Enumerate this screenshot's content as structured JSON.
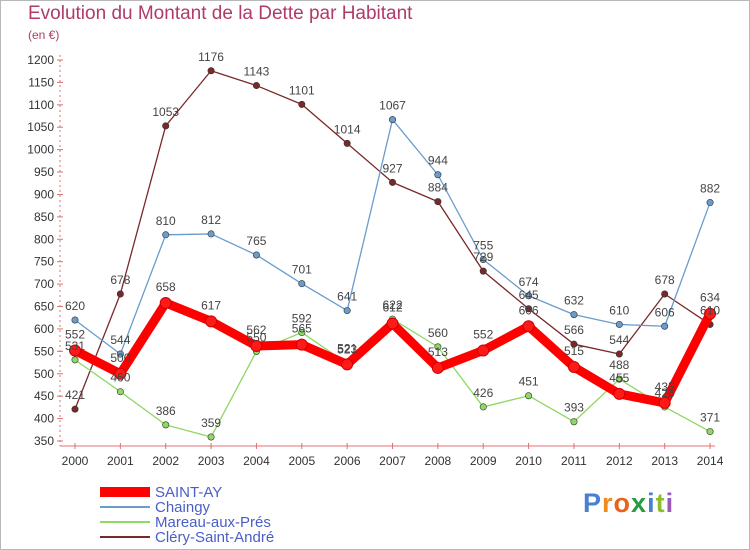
{
  "chart_data": {
    "type": "line",
    "title": "Evolution du Montant de la Dette par Habitant",
    "subtitle": "(en €)",
    "x": [
      "2000",
      "2001",
      "2002",
      "2003",
      "2004",
      "2005",
      "2006",
      "2007",
      "2008",
      "2009",
      "2010",
      "2011",
      "2012",
      "2013",
      "2014"
    ],
    "ylim": [
      350,
      1200
    ],
    "yticks": [
      350,
      400,
      450,
      500,
      550,
      600,
      650,
      700,
      750,
      800,
      850,
      900,
      950,
      1000,
      1050,
      1100,
      1150,
      1200
    ],
    "grid": false,
    "legend_position": "bottom-left",
    "series": [
      {
        "name": "SAINT-AY",
        "color": "#ff0000",
        "values": [
          552,
          500,
          658,
          617,
          562,
          565,
          521,
          612,
          513,
          552,
          606,
          515,
          455,
          435,
          634
        ]
      },
      {
        "name": "Chaingy",
        "color": "#6a9ccc",
        "values": [
          620,
          544,
          810,
          812,
          765,
          701,
          641,
          1067,
          944,
          755,
          674,
          632,
          610,
          606,
          882
        ]
      },
      {
        "name": "Mareau-aux-Prés",
        "color": "#8ed863",
        "values": [
          531,
          460,
          386,
          359,
          550,
          592,
          523,
          622,
          560,
          426,
          451,
          393,
          488,
          426,
          371
        ]
      },
      {
        "name": "Cléry-Saint-André",
        "color": "#7a2828",
        "values": [
          421,
          678,
          1053,
          1176,
          1143,
          1101,
          1014,
          927,
          884,
          729,
          645,
          566,
          544,
          678,
          610
        ]
      }
    ]
  },
  "brand": {
    "letters": [
      "P",
      "r",
      "o",
      "x",
      "i",
      "t",
      "i"
    ],
    "colors": [
      "#4a80d0",
      "#f08a1c",
      "#e8641c",
      "#2a9a40",
      "#4a80d0",
      "#8cbf2a",
      "#9a5ab8"
    ]
  }
}
